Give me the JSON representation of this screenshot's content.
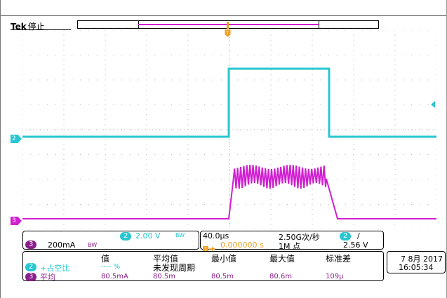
{
  "brand": "Tek",
  "status": "停止",
  "ch2": {
    "badge": "2",
    "scale": "2.00 V",
    "bw": "BW"
  },
  "ch3": {
    "badge": "3",
    "scale": "200mA",
    "bw": "BW"
  },
  "timebase": {
    "scale": "40.0µs",
    "trigger_pos": "0.000000 s",
    "sample_rate": "2.50G次/秒",
    "record_length": "1M 点"
  },
  "trigger": {
    "channel": "2",
    "slope": "/",
    "level": "2.56 V"
  },
  "measurements": {
    "headers": [
      "值",
      "平均值",
      "最小值",
      "最大值",
      "标准差"
    ],
    "rows": [
      {
        "channel": "2",
        "name": "+占空比",
        "value": "---- %",
        "mean": "未发现周期",
        "min": "",
        "max": "",
        "std": ""
      },
      {
        "channel": "3",
        "name": "平均",
        "value": "80.5mA",
        "mean": "80.5m",
        "min": "80.5m",
        "max": "80.6m",
        "std": "109µ"
      }
    ]
  },
  "datetime": {
    "date": "7 8月 2017",
    "time": "16:05:34"
  },
  "colors": {
    "ch2": "#28c6d0",
    "ch3": "#d01fd0",
    "ch3_label": "#8b1f8b"
  }
}
